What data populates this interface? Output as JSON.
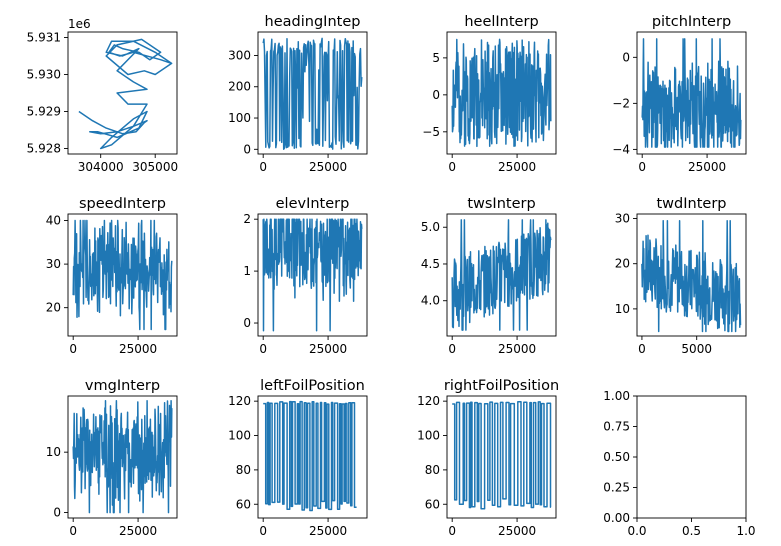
{
  "chart_data": [
    {
      "type": "line",
      "title": "",
      "offset_label": "1e6",
      "series_color": "#1f77b4",
      "xlim": [
        303400,
        305400
      ],
      "ylim": [
        5.92785,
        5.93115
      ],
      "xticks": [
        304000,
        305000
      ],
      "xtick_labels": [
        "304000",
        "305000"
      ],
      "yticks": [
        5.928,
        5.929,
        5.93,
        5.931
      ],
      "ytick_labels": [
        "5.928",
        "5.929",
        "5.930",
        "5.931"
      ],
      "series": [
        {
          "kind": "track",
          "points": [
            [
              303600,
              5.929
            ],
            [
              303850,
              5.92875
            ],
            [
              304100,
              5.92855
            ],
            [
              304400,
              5.9284
            ],
            [
              304650,
              5.92845
            ],
            [
              304800,
              5.9287
            ],
            [
              304850,
              5.92875
            ],
            [
              304600,
              5.9286
            ],
            [
              304300,
              5.92845
            ],
            [
              304000,
              5.9284
            ],
            [
              303800,
              5.92845
            ],
            [
              303950,
              5.92845
            ],
            [
              304300,
              5.9283
            ],
            [
              304700,
              5.92855
            ],
            [
              304850,
              5.929
            ],
            [
              304600,
              5.9288
            ],
            [
              304200,
              5.9283
            ],
            [
              304000,
              5.928
            ],
            [
              304200,
              5.9281
            ],
            [
              304600,
              5.9286
            ],
            [
              304850,
              5.9292
            ],
            [
              304500,
              5.9292
            ],
            [
              304300,
              5.9295
            ],
            [
              304850,
              5.9296
            ],
            [
              304600,
              5.9298
            ],
            [
              304300,
              5.9301
            ],
            [
              304700,
              5.9307
            ],
            [
              304400,
              5.9305
            ],
            [
              304100,
              5.9306
            ],
            [
              304200,
              5.9309
            ],
            [
              304600,
              5.9309
            ],
            [
              305000,
              5.9306
            ],
            [
              305300,
              5.9303
            ],
            [
              305000,
              5.93
            ],
            [
              304800,
              5.9301
            ],
            [
              304500,
              5.93
            ],
            [
              304100,
              5.9305
            ],
            [
              304300,
              5.9308
            ],
            [
              304750,
              5.93095
            ],
            [
              305100,
              5.9306
            ],
            [
              304900,
              5.9304
            ],
            [
              304700,
              5.9306
            ],
            [
              304400,
              5.9307
            ],
            [
              304250,
              5.9308
            ],
            [
              304150,
              5.9306
            ],
            [
              304350,
              5.9305
            ],
            [
              304600,
              5.9306
            ],
            [
              305100,
              5.9304
            ],
            [
              305300,
              5.9303
            ]
          ]
        }
      ]
    },
    {
      "type": "line",
      "title": "headingIntep",
      "series_color": "#1f77b4",
      "xlim": [
        -2000,
        40000
      ],
      "ylim": [
        -15,
        375
      ],
      "xticks": [
        0,
        25000
      ],
      "xtick_labels": [
        "0",
        "25000"
      ],
      "yticks": [
        0,
        100,
        200,
        300
      ],
      "ytick_labels": [
        "0",
        "100",
        "200",
        "300"
      ],
      "series": [
        {
          "kind": "noise",
          "n": 150,
          "seed": 1,
          "min": 0,
          "max": 360,
          "mode": "bimodal",
          "xmax": 38000
        }
      ]
    },
    {
      "type": "line",
      "title": "heelInterp",
      "series_color": "#1f77b4",
      "xlim": [
        -2000,
        40000
      ],
      "ylim": [
        -8,
        8.5
      ],
      "xticks": [
        0,
        25000
      ],
      "xtick_labels": [
        "0",
        "25000"
      ],
      "yticks": [
        -5,
        0,
        5
      ],
      "ytick_labels": [
        "−5",
        "0",
        "5"
      ],
      "series": [
        {
          "kind": "noise",
          "n": 280,
          "seed": 2,
          "min": -7,
          "max": 7.5,
          "mode": "uniform",
          "xmax": 38000
        }
      ]
    },
    {
      "type": "line",
      "title": "pitchInterp",
      "series_color": "#1f77b4",
      "xlim": [
        -2000,
        40000
      ],
      "ylim": [
        -4.2,
        1.1
      ],
      "xticks": [
        0,
        25000
      ],
      "xtick_labels": [
        "0",
        "25000"
      ],
      "yticks": [
        -4,
        -2,
        0
      ],
      "ytick_labels": [
        "−4",
        "−2",
        "0"
      ],
      "series": [
        {
          "kind": "noise",
          "n": 300,
          "seed": 3,
          "min": -3.9,
          "max": 0.8,
          "mode": "center",
          "center": -2.3,
          "xmax": 38000
        }
      ]
    },
    {
      "type": "line",
      "title": "speedInterp",
      "series_color": "#1f77b4",
      "xlim": [
        -2000,
        40000
      ],
      "ylim": [
        13.5,
        41.5
      ],
      "xticks": [
        0,
        25000
      ],
      "xtick_labels": [
        "0",
        "25000"
      ],
      "yticks": [
        20,
        30,
        40
      ],
      "ytick_labels": [
        "20",
        "30",
        "40"
      ],
      "series": [
        {
          "kind": "noise",
          "n": 260,
          "seed": 4,
          "min": 15,
          "max": 40,
          "mode": "center",
          "center": 29,
          "xmax": 38000
        }
      ]
    },
    {
      "type": "line",
      "title": "elevInterp",
      "series_color": "#1f77b4",
      "xlim": [
        -2000,
        40000
      ],
      "ylim": [
        -0.25,
        2.1
      ],
      "xticks": [
        0,
        25000
      ],
      "xtick_labels": [
        "0",
        "25000"
      ],
      "yticks": [
        0,
        1,
        2
      ],
      "ytick_labels": [
        "0",
        "1",
        "2"
      ],
      "series": [
        {
          "kind": "noise",
          "n": 300,
          "seed": 5,
          "min": -0.15,
          "max": 2.0,
          "mode": "center",
          "center": 1.45,
          "xmax": 38000
        }
      ]
    },
    {
      "type": "line",
      "title": "twsInterp",
      "series_color": "#1f77b4",
      "xlim": [
        -2000,
        40000
      ],
      "ylim": [
        3.52,
        5.18
      ],
      "xticks": [
        0,
        25000
      ],
      "xtick_labels": [
        "0",
        "25000"
      ],
      "yticks": [
        4.0,
        4.5,
        5.0
      ],
      "ytick_labels": [
        "4.0",
        "4.5",
        "5.0"
      ],
      "series": [
        {
          "kind": "noise",
          "n": 260,
          "seed": 6,
          "min": 3.6,
          "max": 5.1,
          "mode": "trend",
          "start": 4.1,
          "end": 4.6,
          "xmax": 38000
        }
      ]
    },
    {
      "type": "line",
      "title": "twdInterp",
      "series_color": "#1f77b4",
      "xlim": [
        -450,
        9500
      ],
      "ylim": [
        4,
        31
      ],
      "xticks": [
        0,
        5000
      ],
      "xtick_labels": [
        "0",
        "5000"
      ],
      "yticks": [
        10,
        20,
        30
      ],
      "ytick_labels": [
        "10",
        "20",
        "30"
      ],
      "series": [
        {
          "kind": "noise",
          "n": 260,
          "seed": 7,
          "min": 5,
          "max": 29.5,
          "mode": "trend",
          "start": 19,
          "end": 12,
          "xmax": 9000
        }
      ]
    },
    {
      "type": "line",
      "title": "vmgInterp",
      "series_color": "#1f77b4",
      "xlim": [
        -2000,
        40000
      ],
      "ylim": [
        -0.9,
        19.3
      ],
      "xticks": [
        0,
        25000
      ],
      "xtick_labels": [
        "0",
        "25000"
      ],
      "yticks": [
        0,
        10
      ],
      "ytick_labels": [
        "0",
        "10"
      ],
      "series": [
        {
          "kind": "noise",
          "n": 300,
          "seed": 8,
          "min": 0,
          "max": 18.5,
          "mode": "center",
          "center": 10,
          "xmax": 38000
        }
      ]
    },
    {
      "type": "line",
      "title": "leftFoilPosition",
      "series_color": "#1f77b4",
      "xlim": [
        -2000,
        40000
      ],
      "ylim": [
        52,
        123
      ],
      "xticks": [
        0,
        25000
      ],
      "xtick_labels": [
        "0",
        "25000"
      ],
      "yticks": [
        60,
        80,
        100,
        120
      ],
      "ytick_labels": [
        "60",
        "80",
        "100",
        "120"
      ],
      "series": [
        {
          "kind": "square",
          "n": 48,
          "seed": 9,
          "low": 58,
          "high": 119,
          "xmax": 38000
        }
      ]
    },
    {
      "type": "line",
      "title": "rightFoilPosition",
      "series_color": "#1f77b4",
      "xlim": [
        -2000,
        40000
      ],
      "ylim": [
        52,
        123
      ],
      "xticks": [
        0,
        25000
      ],
      "xtick_labels": [
        "0",
        "25000"
      ],
      "yticks": [
        60,
        80,
        100,
        120
      ],
      "ytick_labels": [
        "60",
        "80",
        "100",
        "120"
      ],
      "series": [
        {
          "kind": "square",
          "n": 40,
          "seed": 10,
          "low": 59,
          "high": 119,
          "xmax": 38000
        }
      ]
    },
    {
      "type": "empty",
      "title": "",
      "xlim": [
        0,
        1
      ],
      "ylim": [
        0,
        1
      ],
      "xticks": [
        0,
        0.5,
        1
      ],
      "xtick_labels": [
        "0.0",
        "0.5",
        "1.0"
      ],
      "yticks": [
        0,
        0.25,
        0.5,
        0.75,
        1.0
      ],
      "ytick_labels": [
        "0.00",
        "0.25",
        "0.50",
        "0.75",
        "1.00"
      ],
      "series": []
    }
  ]
}
